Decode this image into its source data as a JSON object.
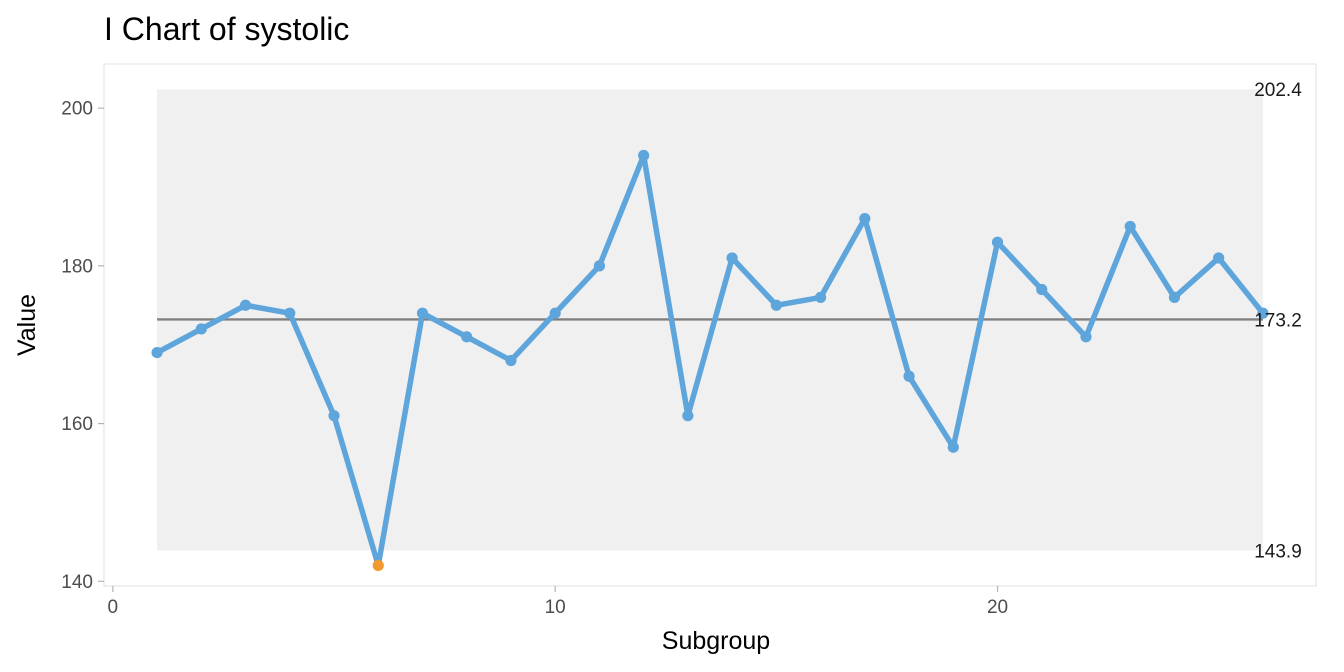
{
  "chart_data": {
    "type": "line",
    "title": "I Chart of systolic",
    "xlabel": "Subgroup",
    "ylabel": "Value",
    "x": [
      1,
      2,
      3,
      4,
      5,
      6,
      7,
      8,
      9,
      10,
      11,
      12,
      13,
      14,
      15,
      16,
      17,
      18,
      19,
      20,
      21,
      22,
      23,
      24,
      25,
      26
    ],
    "values": [
      169,
      172,
      175,
      174,
      161,
      142,
      174,
      171,
      168,
      174,
      180,
      194,
      161,
      181,
      175,
      176,
      186,
      166,
      157,
      183,
      177,
      171,
      185,
      176,
      181,
      174
    ],
    "center_line": 173.2,
    "upper_limit": 202.4,
    "lower_limit": 143.9,
    "limit_labels": [
      "202.4",
      "173.2",
      "143.9"
    ],
    "out_of_control_points": [
      6
    ],
    "xlim": [
      -0.2,
      27.2
    ],
    "ylim": [
      139.4,
      205.6
    ],
    "x_ticks": [
      0,
      10,
      20
    ],
    "y_ticks": [
      140,
      160,
      180,
      200
    ],
    "grid": false,
    "legend": "none",
    "colors": {
      "series": "#5ea5dc",
      "out_of_control": "#f29a2e",
      "center_line": "#808080",
      "control_band": "#f0f0f0",
      "panel_border": "#e5e5e5",
      "axis": "#b3b3b3"
    }
  }
}
